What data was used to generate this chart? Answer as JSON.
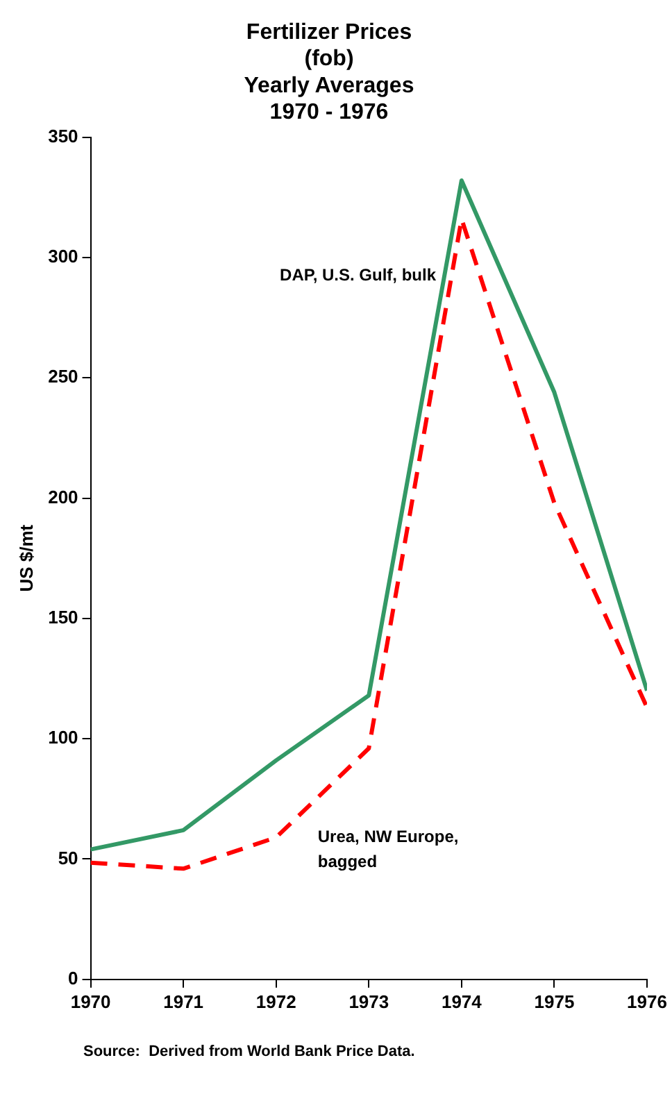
{
  "chart_data": {
    "type": "line",
    "title": "Fertilizer Prices\n(fob)\nYearly Averages\n1970 - 1976",
    "ylabel": "US $/mt",
    "x": [
      1970,
      1971,
      1972,
      1973,
      1974,
      1975,
      1976
    ],
    "xlim": [
      1970,
      1976
    ],
    "xticks": [
      1970,
      1971,
      1972,
      1973,
      1974,
      1975,
      1976
    ],
    "ylim": [
      0,
      350
    ],
    "yticks": [
      0,
      50,
      100,
      150,
      200,
      250,
      300,
      350
    ],
    "series": [
      {
        "name": "DAP, U.S. Gulf, bulk",
        "color": "#339966",
        "line_style": "solid",
        "values": [
          54,
          62,
          91,
          118,
          332,
          244,
          120
        ]
      },
      {
        "name": "Urea, NW Europe, bagged",
        "color": "#ff0000",
        "line_style": "dashed",
        "values": [
          48.5,
          46,
          59,
          96,
          316,
          198,
          113
        ]
      }
    ],
    "grid": false,
    "legend": false,
    "marker": "none",
    "annotations": [
      "Source:  Derived from World Bank Price Data."
    ]
  }
}
